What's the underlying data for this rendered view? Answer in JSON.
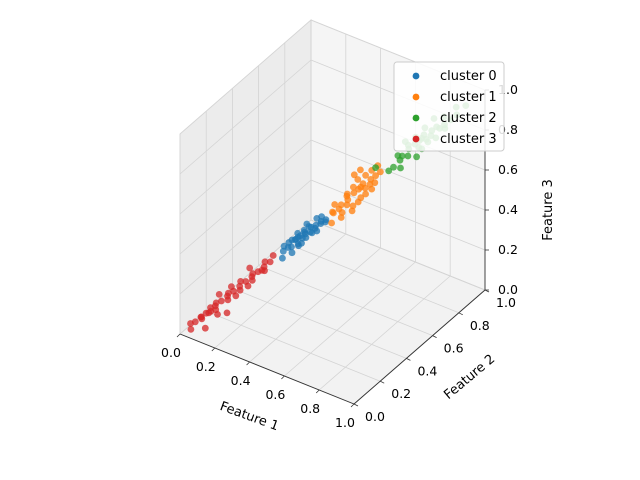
{
  "chart_data": {
    "type": "scatter",
    "projection": "3d",
    "xlabel": "Feature 1",
    "ylabel": "Feature 2",
    "zlabel": "Feature 3",
    "xlim": [
      0,
      1
    ],
    "ylim": [
      0,
      1
    ],
    "zlim": [
      0,
      1
    ],
    "x_ticks": [
      "0.0",
      "0.2",
      "0.4",
      "0.6",
      "0.8",
      "1.0"
    ],
    "y_ticks": [
      "0.0",
      "0.2",
      "0.4",
      "0.6",
      "0.8",
      "1.0"
    ],
    "z_ticks": [
      "0.0",
      "0.2",
      "0.4",
      "0.6",
      "0.8",
      "1.0"
    ],
    "grid": true,
    "legend_position": "top-right",
    "series": [
      {
        "name": "cluster 0",
        "color": "#1f77b4",
        "points": [
          [
            0.37,
            0.41,
            0.38
          ],
          [
            0.39,
            0.4,
            0.4
          ],
          [
            0.41,
            0.39,
            0.4
          ],
          [
            0.36,
            0.4,
            0.37
          ],
          [
            0.4,
            0.42,
            0.41
          ],
          [
            0.38,
            0.38,
            0.39
          ],
          [
            0.42,
            0.4,
            0.42
          ],
          [
            0.44,
            0.41,
            0.43
          ],
          [
            0.43,
            0.43,
            0.44
          ],
          [
            0.45,
            0.44,
            0.45
          ],
          [
            0.46,
            0.42,
            0.45
          ],
          [
            0.35,
            0.36,
            0.35
          ],
          [
            0.34,
            0.38,
            0.36
          ],
          [
            0.33,
            0.35,
            0.33
          ],
          [
            0.4,
            0.37,
            0.38
          ],
          [
            0.47,
            0.45,
            0.46
          ],
          [
            0.48,
            0.44,
            0.48
          ],
          [
            0.39,
            0.43,
            0.41
          ],
          [
            0.41,
            0.44,
            0.43
          ],
          [
            0.37,
            0.36,
            0.36
          ],
          [
            0.43,
            0.39,
            0.41
          ],
          [
            0.45,
            0.41,
            0.43
          ],
          [
            0.32,
            0.37,
            0.34
          ],
          [
            0.36,
            0.42,
            0.39
          ],
          [
            0.44,
            0.46,
            0.47
          ],
          [
            0.49,
            0.46,
            0.47
          ],
          [
            0.38,
            0.35,
            0.34
          ],
          [
            0.42,
            0.37,
            0.39
          ],
          [
            0.35,
            0.39,
            0.37
          ],
          [
            0.46,
            0.47,
            0.48
          ],
          [
            0.41,
            0.36,
            0.38
          ],
          [
            0.47,
            0.42,
            0.44
          ],
          [
            0.39,
            0.45,
            0.43
          ],
          [
            0.34,
            0.33,
            0.31
          ],
          [
            0.5,
            0.45,
            0.49
          ]
        ]
      },
      {
        "name": "cluster 1",
        "color": "#ff7f0e",
        "points": [
          [
            0.55,
            0.55,
            0.55
          ],
          [
            0.57,
            0.57,
            0.58
          ],
          [
            0.59,
            0.58,
            0.6
          ],
          [
            0.6,
            0.6,
            0.62
          ],
          [
            0.62,
            0.59,
            0.61
          ],
          [
            0.58,
            0.61,
            0.59
          ],
          [
            0.56,
            0.53,
            0.54
          ],
          [
            0.54,
            0.56,
            0.57
          ],
          [
            0.61,
            0.57,
            0.57
          ],
          [
            0.63,
            0.62,
            0.64
          ],
          [
            0.64,
            0.6,
            0.63
          ],
          [
            0.52,
            0.54,
            0.52
          ],
          [
            0.53,
            0.51,
            0.52
          ],
          [
            0.5,
            0.5,
            0.5
          ],
          [
            0.65,
            0.63,
            0.66
          ],
          [
            0.58,
            0.55,
            0.53
          ],
          [
            0.6,
            0.62,
            0.65
          ],
          [
            0.66,
            0.61,
            0.64
          ],
          [
            0.51,
            0.48,
            0.46
          ],
          [
            0.55,
            0.5,
            0.49
          ],
          [
            0.62,
            0.64,
            0.67
          ],
          [
            0.57,
            0.6,
            0.63
          ],
          [
            0.53,
            0.57,
            0.55
          ],
          [
            0.59,
            0.53,
            0.52
          ],
          [
            0.67,
            0.64,
            0.68
          ],
          [
            0.61,
            0.55,
            0.56
          ],
          [
            0.54,
            0.52,
            0.5
          ],
          [
            0.56,
            0.58,
            0.6
          ],
          [
            0.63,
            0.58,
            0.59
          ],
          [
            0.49,
            0.52,
            0.48
          ],
          [
            0.6,
            0.58,
            0.7
          ],
          [
            0.58,
            0.56,
            0.68
          ],
          [
            0.65,
            0.6,
            0.61
          ],
          [
            0.52,
            0.49,
            0.55
          ],
          [
            0.64,
            0.66,
            0.69
          ]
        ]
      },
      {
        "name": "cluster 2",
        "color": "#2ca02c",
        "points": [
          [
            0.75,
            0.75,
            0.76
          ],
          [
            0.77,
            0.77,
            0.78
          ],
          [
            0.79,
            0.78,
            0.8
          ],
          [
            0.8,
            0.8,
            0.82
          ],
          [
            0.82,
            0.79,
            0.81
          ],
          [
            0.78,
            0.81,
            0.79
          ],
          [
            0.76,
            0.73,
            0.74
          ],
          [
            0.74,
            0.76,
            0.77
          ],
          [
            0.81,
            0.77,
            0.77
          ],
          [
            0.83,
            0.82,
            0.84
          ],
          [
            0.84,
            0.8,
            0.83
          ],
          [
            0.72,
            0.74,
            0.72
          ],
          [
            0.73,
            0.71,
            0.72
          ],
          [
            0.7,
            0.7,
            0.68
          ],
          [
            0.85,
            0.83,
            0.86
          ],
          [
            0.86,
            0.84,
            0.85
          ],
          [
            0.88,
            0.85,
            0.87
          ],
          [
            0.9,
            0.87,
            0.89
          ],
          [
            0.92,
            0.89,
            0.91
          ],
          [
            0.95,
            0.92,
            0.95
          ],
          [
            0.68,
            0.69,
            0.66
          ],
          [
            0.71,
            0.72,
            0.73
          ],
          [
            0.79,
            0.82,
            0.84
          ],
          [
            0.83,
            0.79,
            0.8
          ],
          [
            0.87,
            0.86,
            0.9
          ],
          [
            0.76,
            0.79,
            0.8
          ],
          [
            0.8,
            0.76,
            0.78
          ],
          [
            0.74,
            0.7,
            0.69
          ],
          [
            0.89,
            0.84,
            0.86
          ],
          [
            0.65,
            0.63,
            0.7
          ],
          [
            0.78,
            0.77,
            0.72
          ],
          [
            0.82,
            0.85,
            0.88
          ],
          [
            0.73,
            0.75,
            0.79
          ],
          [
            0.86,
            0.81,
            0.82
          ],
          [
            0.91,
            0.9,
            0.94
          ]
        ]
      },
      {
        "name": "cluster 3",
        "color": "#d62728",
        "points": [
          [
            0.05,
            0.05,
            0.05
          ],
          [
            0.07,
            0.07,
            0.07
          ],
          [
            0.09,
            0.08,
            0.09
          ],
          [
            0.1,
            0.1,
            0.11
          ],
          [
            0.12,
            0.11,
            0.12
          ],
          [
            0.14,
            0.13,
            0.14
          ],
          [
            0.16,
            0.15,
            0.16
          ],
          [
            0.18,
            0.17,
            0.18
          ],
          [
            0.2,
            0.19,
            0.2
          ],
          [
            0.22,
            0.21,
            0.22
          ],
          [
            0.24,
            0.23,
            0.24
          ],
          [
            0.26,
            0.25,
            0.26
          ],
          [
            0.28,
            0.27,
            0.28
          ],
          [
            0.3,
            0.29,
            0.3
          ],
          [
            0.06,
            0.08,
            0.06
          ],
          [
            0.08,
            0.06,
            0.07
          ],
          [
            0.11,
            0.13,
            0.12
          ],
          [
            0.13,
            0.1,
            0.11
          ],
          [
            0.15,
            0.17,
            0.16
          ],
          [
            0.17,
            0.14,
            0.15
          ],
          [
            0.19,
            0.21,
            0.21
          ],
          [
            0.21,
            0.18,
            0.19
          ],
          [
            0.23,
            0.25,
            0.24
          ],
          [
            0.25,
            0.22,
            0.23
          ],
          [
            0.27,
            0.29,
            0.29
          ],
          [
            0.29,
            0.26,
            0.27
          ],
          [
            0.03,
            0.04,
            0.04
          ],
          [
            0.04,
            0.03,
            0.02
          ],
          [
            0.1,
            0.06,
            0.03
          ],
          [
            0.14,
            0.1,
            0.09
          ],
          [
            0.18,
            0.12,
            0.1
          ],
          [
            0.12,
            0.14,
            0.16
          ],
          [
            0.22,
            0.24,
            0.27
          ],
          [
            0.24,
            0.2,
            0.21
          ],
          [
            0.31,
            0.3,
            0.33
          ],
          [
            0.09,
            0.1,
            0.08
          ],
          [
            0.16,
            0.18,
            0.19
          ],
          [
            0.2,
            0.16,
            0.17
          ],
          [
            0.26,
            0.28,
            0.25
          ],
          [
            0.11,
            0.09,
            0.1
          ]
        ]
      }
    ]
  }
}
